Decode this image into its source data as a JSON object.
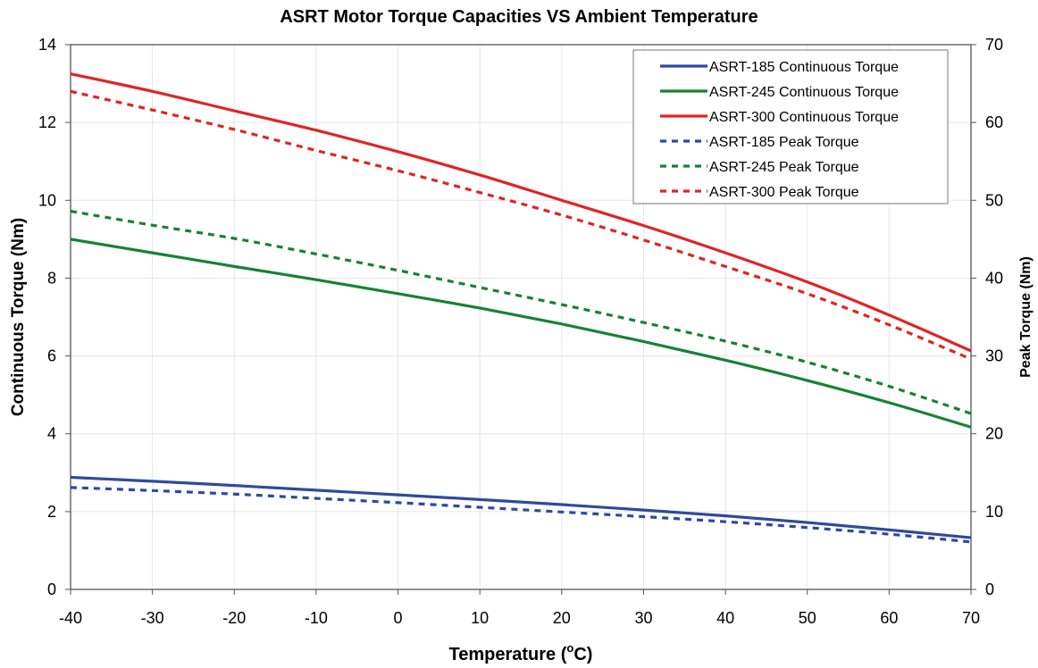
{
  "chart_data": {
    "type": "line",
    "title": "ASRT Motor Torque Capacities VS Ambient Temperature",
    "xlabel_main": "Temperature (",
    "xlabel_sup": "o",
    "xlabel_end": "C)",
    "ylabel_left": "Continuous Torque (Nm)",
    "ylabel_right": "Peak Torque (Nm)",
    "xlim": [
      -40,
      70
    ],
    "ylim_left": [
      0,
      14
    ],
    "ylim_right": [
      0,
      70
    ],
    "x_ticks": [
      "-40",
      "-30",
      "-20",
      "-10",
      "0",
      "10",
      "20",
      "30",
      "40",
      "50",
      "60",
      "70"
    ],
    "y_left_ticks": [
      "0",
      "2",
      "4",
      "6",
      "8",
      "10",
      "12",
      "14"
    ],
    "y_right_ticks": [
      "0",
      "10",
      "20",
      "30",
      "40",
      "50",
      "60",
      "70"
    ],
    "grid": true,
    "legend_position": "top-right",
    "x": [
      -40,
      -30,
      -20,
      -10,
      0,
      10,
      20,
      30,
      40,
      50,
      60,
      70
    ],
    "series": [
      {
        "name": "ASRT-185 Continuous Torque",
        "axis": "left",
        "style": "solid",
        "color": "#2e4a9e",
        "values": [
          2.88,
          2.78,
          2.67,
          2.55,
          2.43,
          2.31,
          2.18,
          2.04,
          1.89,
          1.72,
          1.53,
          1.33
        ]
      },
      {
        "name": "ASRT-245 Continuous Torque",
        "axis": "left",
        "style": "solid",
        "color": "#178236",
        "values": [
          9.0,
          8.65,
          8.3,
          7.96,
          7.6,
          7.23,
          6.82,
          6.37,
          5.89,
          5.37,
          4.8,
          4.17
        ]
      },
      {
        "name": "ASRT-300 Continuous Torque",
        "axis": "left",
        "style": "solid",
        "color": "#e02424",
        "values": [
          13.25,
          12.8,
          12.3,
          11.8,
          11.25,
          10.65,
          10.0,
          9.35,
          8.65,
          7.9,
          7.05,
          6.13
        ]
      },
      {
        "name": "ASRT-185 Peak Torque",
        "axis": "right",
        "style": "dashed",
        "color": "#2e4a9e",
        "values": [
          13.1,
          12.7,
          12.25,
          11.7,
          11.15,
          10.55,
          9.95,
          9.35,
          8.7,
          7.95,
          7.1,
          6.1
        ]
      },
      {
        "name": "ASRT-245 Peak Torque",
        "axis": "right",
        "style": "dashed",
        "color": "#178236",
        "values": [
          48.6,
          46.8,
          45.1,
          43.1,
          41.0,
          38.8,
          36.6,
          34.3,
          31.9,
          29.2,
          26.1,
          22.6
        ]
      },
      {
        "name": "ASRT-300 Peak Torque",
        "axis": "right",
        "style": "dashed",
        "color": "#e02424",
        "values": [
          64.0,
          61.6,
          59.1,
          56.4,
          53.8,
          51.0,
          48.1,
          44.9,
          41.5,
          38.0,
          34.0,
          29.6
        ]
      }
    ]
  }
}
